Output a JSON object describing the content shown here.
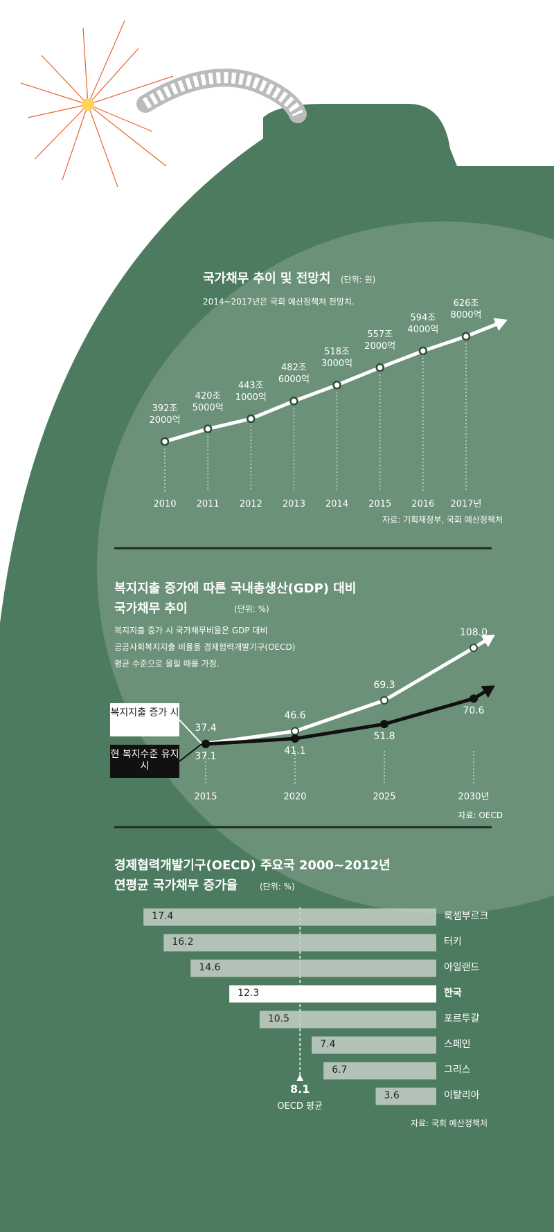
{
  "chart_data": [
    {
      "type": "line",
      "title": [
        "국가채무 추이 및 전망치"
      ],
      "unit": "(단위: 원)",
      "notes": [
        "2014~2017년은 국회 예산정책처 전망치."
      ],
      "categories": [
        "2010",
        "2011",
        "2012",
        "2013",
        "2014",
        "2015",
        "2016",
        "2017년"
      ],
      "series": [
        {
          "color": "#ffffff",
          "values": [
            392.2,
            420.5,
            443.1,
            482.6,
            518.3,
            557.2,
            594.4,
            626.8
          ],
          "value_labels": [
            "392조 2000억",
            "420조 5000억",
            "443조 1000억",
            "482조 6000억",
            "518조 3000억",
            "557조 2000억",
            "594조 4000억",
            "626조 8000억"
          ]
        }
      ],
      "source": "자료: 기획재정부, 국회 예산정책처"
    },
    {
      "type": "line",
      "title": [
        "복지지출 증가에 따른 국내총생산(GDP) 대비",
        "국가채무 추이"
      ],
      "unit": "(단위: %)",
      "notes": [
        "복지지출 증가 시 국가채무비율은 GDP 대비",
        "공공사회복지지출 비율을 경제협력개발기구(OECD)",
        "평균 수준으로 올릴 때를 가정."
      ],
      "categories": [
        "2015",
        "2020",
        "2025",
        "2030년"
      ],
      "series": [
        {
          "name": "복지지출 증가 시",
          "color": "#ffffff",
          "values": [
            37.4,
            46.6,
            69.3,
            108.0
          ],
          "value_labels": [
            "37.4",
            "46.6",
            "69.3",
            "108.0"
          ]
        },
        {
          "name": "현 복지수준 유지 시",
          "color": "#111111",
          "values": [
            37.1,
            41.1,
            51.8,
            70.6
          ]
        }
      ],
      "source": "자료: OECD"
    },
    {
      "type": "hbar",
      "title": [
        "경제협력개발기구(OECD) 주요국 2000~2012년",
        "연평균 국가채무 증가율"
      ],
      "unit": "(단위: %)",
      "categories": [
        "룩셈부르크",
        "터키",
        "아일랜드",
        "한국",
        "포르투갈",
        "스페인",
        "그리스",
        "이탈리아"
      ],
      "values": [
        17.4,
        16.2,
        14.6,
        12.3,
        10.5,
        7.4,
        6.7,
        3.6
      ],
      "colors": [
        "#c5cfc6",
        "#c5cfc6",
        "#c5cfc6",
        "#ffffff",
        "#c5cfc6",
        "#c5cfc6",
        "#c5cfc6",
        "#c5cfc6"
      ],
      "reference": {
        "value": 8.1,
        "label": "OECD 평균"
      },
      "source": "자료: 국회 예산정책처"
    }
  ]
}
